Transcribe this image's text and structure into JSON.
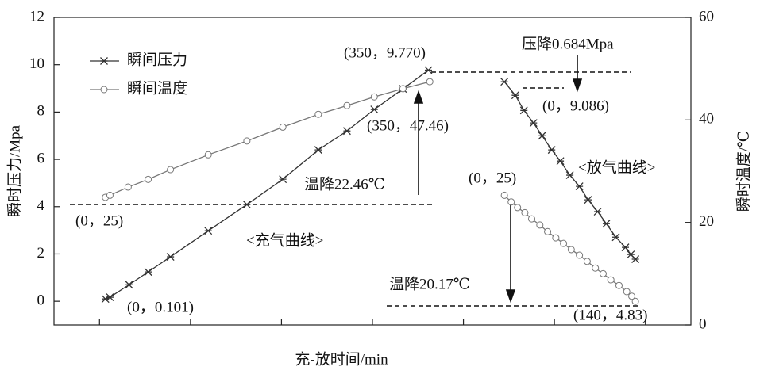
{
  "chart_data": {
    "type": "line",
    "xlabel": "充-放时间/min",
    "ylabel": "瞬时压力/Mpa",
    "y2label": "瞬时温度/℃",
    "xlim": [
      0,
      14
    ],
    "xticks": [
      1,
      3,
      5,
      7,
      9,
      11,
      13
    ],
    "ylim": [
      -1,
      12
    ],
    "yticks": [
      0,
      2,
      4,
      6,
      8,
      10,
      12
    ],
    "y2lim": [
      0,
      60
    ],
    "y2ticks": [
      0,
      20,
      40,
      60
    ],
    "legend": "upper left",
    "series": [
      {
        "name": "瞬间压力",
        "color": "#333333",
        "marker": "star",
        "x": [
          1.13,
          1.23,
          1.65,
          2.07,
          2.56,
          3.39,
          4.24,
          5.03,
          5.81,
          6.44,
          7.04,
          7.67,
          8.23,
          null,
          9.9,
          10.14,
          10.33,
          10.54,
          10.73,
          10.94,
          11.13,
          11.34,
          11.55,
          11.74,
          11.95,
          12.14,
          12.35,
          12.56,
          12.68,
          12.78
        ],
        "values": [
          0.1,
          0.17,
          0.7,
          1.24,
          1.88,
          2.98,
          4.09,
          5.16,
          6.4,
          7.2,
          8.11,
          8.98,
          9.77,
          null,
          9.28,
          8.71,
          8.07,
          7.54,
          7.0,
          6.4,
          5.93,
          5.33,
          4.86,
          4.29,
          3.79,
          3.28,
          2.71,
          2.28,
          1.98,
          1.78
        ]
      },
      {
        "name": "瞬间温度",
        "color": "#777777",
        "marker": "circle",
        "axis": "y2",
        "x": [
          1.13,
          1.23,
          1.63,
          2.07,
          2.56,
          3.39,
          4.24,
          5.03,
          5.81,
          6.44,
          7.04,
          7.67,
          8.26,
          null,
          9.9,
          10.05,
          10.19,
          10.35,
          10.5,
          10.68,
          10.85,
          11.03,
          11.2,
          11.37,
          11.55,
          11.72,
          11.9,
          12.07,
          12.24,
          12.42,
          12.59,
          12.7,
          12.78
        ],
        "values": [
          24.9,
          25.3,
          26.9,
          28.4,
          30.3,
          33.2,
          35.9,
          38.6,
          41.1,
          42.8,
          44.5,
          46.1,
          47.46,
          null,
          25.3,
          24.0,
          22.9,
          21.9,
          20.7,
          19.5,
          18.2,
          17.0,
          15.9,
          14.7,
          13.6,
          12.4,
          11.1,
          10.0,
          8.8,
          7.7,
          6.5,
          5.6,
          4.6
        ]
      }
    ],
    "annotations": [
      "(350，9.770)",
      "压降0.684Mpa",
      "(0，9.086)",
      "(350，47.46)",
      "<放气曲线>",
      "温降22.46℃",
      "(0，25)",
      "(0，25)",
      "<充气曲线>",
      "(0，0.101)",
      "温降20.17℃",
      "(140，4.83)"
    ]
  }
}
